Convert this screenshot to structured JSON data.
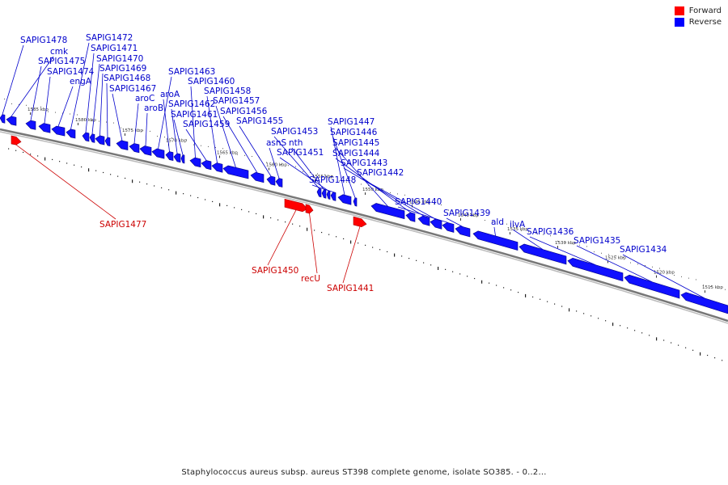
{
  "legend": {
    "items": [
      {
        "label": "Forward",
        "color": "#ff0000"
      },
      {
        "label": "Reverse",
        "color": "#0000ff"
      }
    ]
  },
  "caption": "Staphylococcus aureus subsp. aureus ST398 complete genome, isolate SO385. - 0..2...",
  "colors": {
    "forward": "#ff0000",
    "reverse": "#1010ff",
    "backbone": "#666666"
  },
  "scale_ticks": [
    "1585 kbp",
    "1580 kbp",
    "1575 kbp",
    "1570 kbp",
    "1565 kbp",
    "1560 kbp",
    "1555 kbp",
    "1550 kbp",
    "1545 kbp",
    "1540 kbp",
    "1535 kbp",
    "1530 kbp",
    "1525 kbp",
    "1520 kbp",
    "1515 kbp"
  ],
  "genes": [
    {
      "name": "SAPIG1478",
      "strand": "reverse"
    },
    {
      "name": "cmk",
      "strand": "reverse"
    },
    {
      "name": "SAPIG1475",
      "strand": "reverse"
    },
    {
      "name": "SAPIG1474",
      "strand": "reverse"
    },
    {
      "name": "engA",
      "strand": "reverse"
    },
    {
      "name": "SAPIG1472",
      "strand": "reverse"
    },
    {
      "name": "SAPIG1471",
      "strand": "reverse"
    },
    {
      "name": "SAPIG1470",
      "strand": "reverse"
    },
    {
      "name": "SAPIG1469",
      "strand": "reverse"
    },
    {
      "name": "SAPIG1468",
      "strand": "reverse"
    },
    {
      "name": "SAPIG1467",
      "strand": "reverse"
    },
    {
      "name": "aroC",
      "strand": "reverse"
    },
    {
      "name": "aroB",
      "strand": "reverse"
    },
    {
      "name": "SAPIG1463",
      "strand": "reverse"
    },
    {
      "name": "aroA",
      "strand": "reverse"
    },
    {
      "name": "SAPIG1462",
      "strand": "reverse"
    },
    {
      "name": "SAPIG1461",
      "strand": "reverse"
    },
    {
      "name": "SAPIG1460",
      "strand": "reverse"
    },
    {
      "name": "SAPIG1459",
      "strand": "reverse"
    },
    {
      "name": "SAPIG1458",
      "strand": "reverse"
    },
    {
      "name": "SAPIG1457",
      "strand": "reverse"
    },
    {
      "name": "SAPIG1456",
      "strand": "reverse"
    },
    {
      "name": "SAPIG1455",
      "strand": "reverse"
    },
    {
      "name": "asnS",
      "strand": "reverse"
    },
    {
      "name": "SAPIG1453",
      "strand": "reverse"
    },
    {
      "name": "nth",
      "strand": "reverse"
    },
    {
      "name": "SAPIG1451",
      "strand": "reverse"
    },
    {
      "name": "SAPIG1448",
      "strand": "reverse"
    },
    {
      "name": "SAPIG1447",
      "strand": "reverse"
    },
    {
      "name": "SAPIG1446",
      "strand": "reverse"
    },
    {
      "name": "SAPIG1445",
      "strand": "reverse"
    },
    {
      "name": "SAPIG1444",
      "strand": "reverse"
    },
    {
      "name": "SAPIG1443",
      "strand": "reverse"
    },
    {
      "name": "SAPIG1442",
      "strand": "reverse"
    },
    {
      "name": "SAPIG1440",
      "strand": "reverse"
    },
    {
      "name": "SAPIG1439",
      "strand": "reverse"
    },
    {
      "name": "ald",
      "strand": "reverse"
    },
    {
      "name": "ilvA",
      "strand": "reverse"
    },
    {
      "name": "SAPIG1436",
      "strand": "reverse"
    },
    {
      "name": "SAPIG1435",
      "strand": "reverse"
    },
    {
      "name": "SAPIG1434",
      "strand": "reverse"
    },
    {
      "name": "SAPIG1477",
      "strand": "forward"
    },
    {
      "name": "SAPIG1450",
      "strand": "forward"
    },
    {
      "name": "recU",
      "strand": "forward"
    },
    {
      "name": "SAPIG1441",
      "strand": "forward"
    }
  ]
}
